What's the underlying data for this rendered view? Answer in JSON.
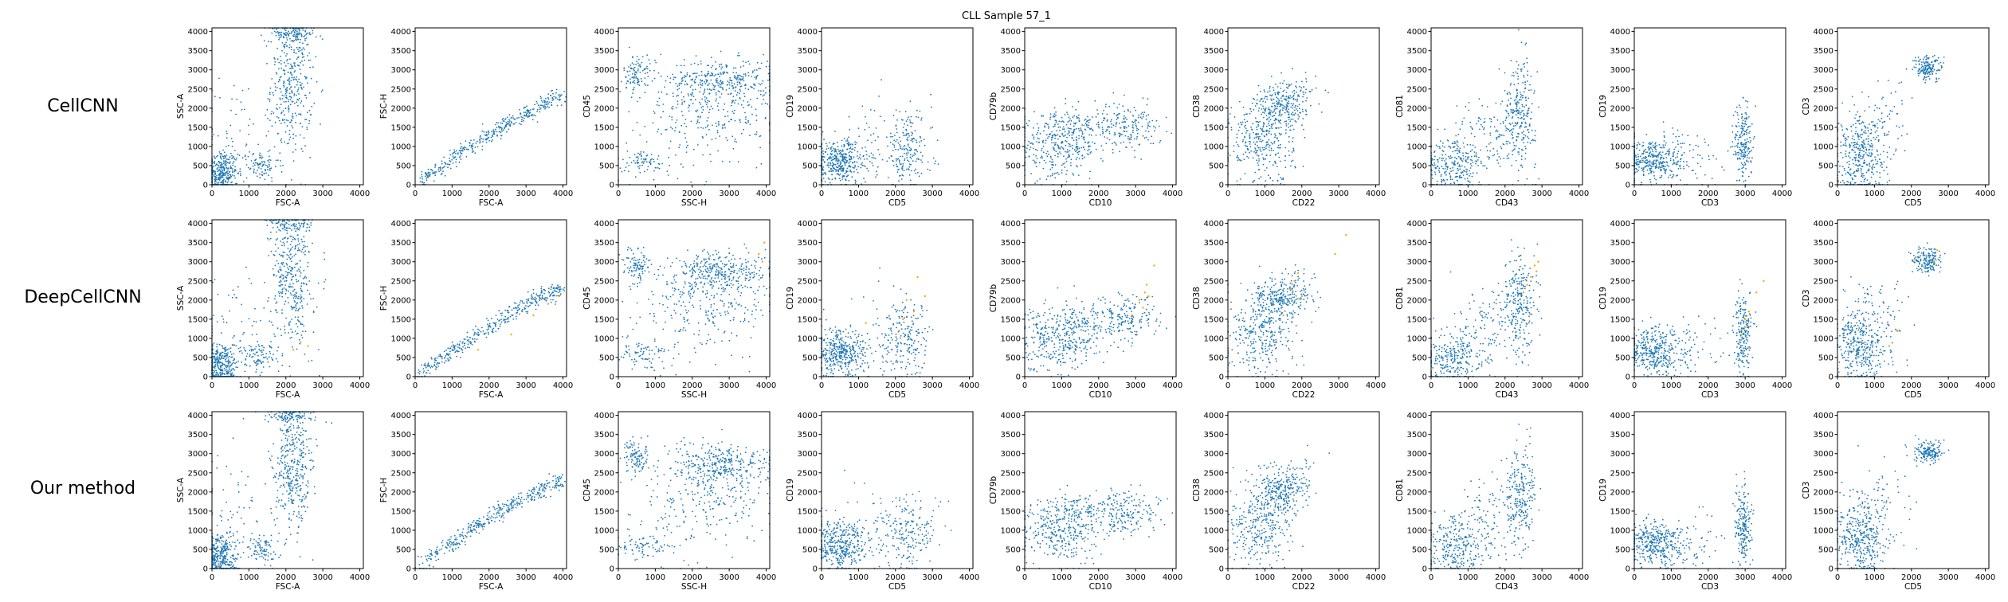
{
  "figure": {
    "title": "CLL Sample 57_1",
    "row_labels": [
      "CellCNN",
      "DeepCellCNN",
      "Our method"
    ]
  },
  "colors": {
    "points": "#1f77b4",
    "highlight": "#ffa500"
  },
  "chart_data": {
    "type": "scatter",
    "title": "CLL Sample 57_1",
    "rows": [
      "CellCNN",
      "DeepCellCNN",
      "Our method"
    ],
    "highlight_row": "DeepCellCNN",
    "ticks": [
      0,
      500,
      1000,
      1500,
      2000,
      2500,
      3000,
      3500,
      4000
    ],
    "panels": [
      {
        "xlabel": "FSC-A",
        "ylabel": "SSC-A",
        "xlim": [
          0,
          4096
        ],
        "ylim": [
          0,
          4096
        ],
        "x_ticks": [
          0,
          1000,
          2000,
          3000,
          4000
        ]
      },
      {
        "xlabel": "FSC-A",
        "ylabel": "FSC-H",
        "xlim": [
          0,
          4096
        ],
        "ylim": [
          0,
          4096
        ],
        "x_ticks": [
          0,
          1000,
          2000,
          3000,
          4000
        ]
      },
      {
        "xlabel": "SSC-H",
        "ylabel": "CD45",
        "xlim": [
          0,
          4096
        ],
        "ylim": [
          0,
          4096
        ],
        "x_ticks": [
          0,
          1000,
          2000,
          3000,
          4000
        ]
      },
      {
        "xlabel": "CD5",
        "ylabel": "CD19",
        "xlim": [
          0,
          4096
        ],
        "ylim": [
          0,
          4096
        ],
        "x_ticks": [
          0,
          1000,
          2000,
          3000,
          4000
        ]
      },
      {
        "xlabel": "CD10",
        "ylabel": "CD79b",
        "xlim": [
          0,
          4096
        ],
        "ylim": [
          0,
          4096
        ],
        "x_ticks": [
          0,
          1000,
          2000,
          3000,
          4000
        ]
      },
      {
        "xlabel": "CD22",
        "ylabel": "CD38",
        "xlim": [
          0,
          4096
        ],
        "ylim": [
          0,
          4096
        ],
        "x_ticks": [
          0,
          1000,
          2000,
          3000,
          4000
        ]
      },
      {
        "xlabel": "CD43",
        "ylabel": "CD81",
        "xlim": [
          0,
          4096
        ],
        "ylim": [
          0,
          4096
        ],
        "x_ticks": [
          0,
          1000,
          2000,
          3000,
          4000
        ]
      },
      {
        "xlabel": "CD3",
        "ylabel": "CD19",
        "xlim": [
          0,
          4096
        ],
        "ylim": [
          0,
          4096
        ],
        "x_ticks": [
          0,
          1000,
          2000,
          3000,
          4000
        ]
      },
      {
        "xlabel": "CD5",
        "ylabel": "CD3",
        "xlim": [
          0,
          4096
        ],
        "ylim": [
          0,
          4096
        ],
        "x_ticks": [
          0,
          1000,
          2000,
          3000,
          4000
        ]
      }
    ],
    "clusters": [
      [
        {
          "cx": 250,
          "cy": 300,
          "sx": 220,
          "sy": 300,
          "n": 320
        },
        {
          "cx": 2150,
          "cy": 2600,
          "sx": 280,
          "sy": 900,
          "n": 380
        },
        {
          "cx": 2150,
          "cy": 3950,
          "sx": 350,
          "sy": 100,
          "n": 90
        },
        {
          "cx": 1300,
          "cy": 500,
          "sx": 250,
          "sy": 200,
          "n": 90
        },
        {
          "cx": 600,
          "cy": 1400,
          "sx": 500,
          "sy": 800,
          "n": 60
        }
      ],
      [
        {
          "line": [
            [
              100,
              50
            ],
            [
              4000,
              2300
            ]
          ],
          "spread": 110,
          "n": 380,
          "curve": 0.35
        }
      ],
      [
        {
          "cx": 2800,
          "cy": 2750,
          "sx": 750,
          "sy": 260,
          "n": 300
        },
        {
          "cx": 2700,
          "cy": 1900,
          "sx": 800,
          "sy": 550,
          "n": 200
        },
        {
          "cx": 500,
          "cy": 2900,
          "sx": 180,
          "sy": 250,
          "n": 100
        },
        {
          "cx": 700,
          "cy": 600,
          "sx": 350,
          "sy": 150,
          "n": 70
        },
        {
          "cx": 1500,
          "cy": 1500,
          "sx": 800,
          "sy": 800,
          "n": 80
        }
      ],
      [
        {
          "cx": 500,
          "cy": 600,
          "sx": 380,
          "sy": 300,
          "n": 380
        },
        {
          "cx": 2300,
          "cy": 900,
          "sx": 350,
          "sy": 500,
          "n": 200
        },
        {
          "cx": 1500,
          "cy": 1200,
          "sx": 700,
          "sy": 600,
          "n": 40
        }
      ],
      [
        {
          "cx": 900,
          "cy": 1000,
          "sx": 550,
          "sy": 420,
          "n": 330
        },
        {
          "cx": 2800,
          "cy": 1500,
          "sx": 450,
          "sy": 300,
          "n": 170
        },
        {
          "cx": 1600,
          "cy": 1500,
          "sx": 500,
          "sy": 250,
          "n": 100
        }
      ],
      [
        {
          "cx": 900,
          "cy": 1100,
          "sx": 450,
          "sy": 550,
          "n": 300
        },
        {
          "cx": 1400,
          "cy": 2000,
          "sx": 350,
          "sy": 300,
          "n": 230
        },
        {
          "cx": 1900,
          "cy": 2300,
          "sx": 250,
          "sy": 300,
          "n": 60
        }
      ],
      [
        {
          "cx": 600,
          "cy": 500,
          "sx": 400,
          "sy": 350,
          "n": 250
        },
        {
          "cx": 2400,
          "cy": 1900,
          "sx": 220,
          "sy": 700,
          "n": 250
        },
        {
          "cx": 1500,
          "cy": 1300,
          "sx": 500,
          "sy": 500,
          "n": 120
        }
      ],
      [
        {
          "cx": 500,
          "cy": 650,
          "sx": 400,
          "sy": 300,
          "n": 360
        },
        {
          "cx": 2950,
          "cy": 1100,
          "sx": 120,
          "sy": 520,
          "n": 200
        },
        {
          "cx": 1500,
          "cy": 700,
          "sx": 500,
          "sy": 400,
          "n": 60
        }
      ],
      [
        {
          "cx": 600,
          "cy": 800,
          "sx": 350,
          "sy": 550,
          "n": 380
        },
        {
          "cx": 2450,
          "cy": 3050,
          "sx": 200,
          "sy": 160,
          "n": 160
        },
        {
          "cx": 1200,
          "cy": 1600,
          "sx": 400,
          "sy": 600,
          "n": 60
        }
      ]
    ],
    "highlight_points": [
      [
        [
          2200,
          700
        ],
        [
          2400,
          900
        ],
        [
          2600,
          800
        ]
      ],
      [
        [
          1700,
          700
        ],
        [
          2600,
          1100
        ],
        [
          3200,
          1600
        ],
        [
          3600,
          1900
        ],
        [
          3900,
          2100
        ]
      ],
      [
        [
          3800,
          3200
        ],
        [
          3950,
          3500
        ],
        [
          3900,
          3000
        ]
      ],
      [
        [
          1200,
          1400
        ],
        [
          2100,
          1200
        ],
        [
          2300,
          2000
        ],
        [
          2500,
          1700
        ],
        [
          2600,
          2600
        ],
        [
          2800,
          2100
        ],
        [
          2200,
          1500
        ]
      ],
      [
        [
          2900,
          1600
        ],
        [
          3100,
          2000
        ],
        [
          3200,
          1800
        ],
        [
          3300,
          2400
        ],
        [
          3350,
          2100
        ],
        [
          3500,
          2900
        ],
        [
          3250,
          2200
        ]
      ],
      [
        [
          1500,
          1600
        ],
        [
          1700,
          2300
        ],
        [
          1900,
          2700
        ],
        [
          2000,
          2100
        ],
        [
          2900,
          3200
        ],
        [
          3200,
          3700
        ],
        [
          1800,
          2500
        ]
      ],
      [
        [
          2500,
          2200
        ],
        [
          2700,
          2600
        ],
        [
          2800,
          2900
        ],
        [
          2900,
          3000
        ],
        [
          2600,
          2400
        ],
        [
          2850,
          2750
        ]
      ],
      [
        [
          2900,
          1100
        ],
        [
          3000,
          1500
        ],
        [
          3100,
          1700
        ],
        [
          3300,
          2200
        ],
        [
          3500,
          2500
        ],
        [
          3000,
          1300
        ]
      ],
      [
        [
          1400,
          800
        ],
        [
          2100,
          3100
        ],
        [
          2600,
          3000
        ],
        [
          2700,
          3300
        ],
        [
          1600,
          1200
        ]
      ]
    ]
  }
}
